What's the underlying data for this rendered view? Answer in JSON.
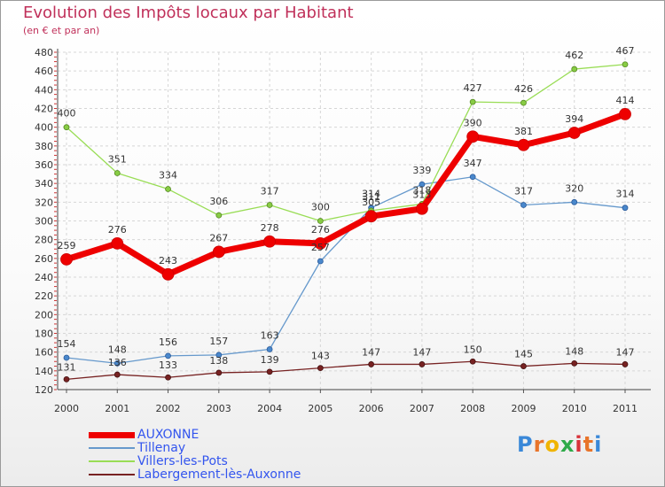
{
  "header": {
    "title": "Evolution des Impôts locaux par Habitant",
    "subtitle": "(en € et par an)"
  },
  "chart_data": {
    "type": "line",
    "title": "Evolution des Impôts locaux par Habitant",
    "subtitle": "(en € et par an)",
    "xlabel": "",
    "ylabel": "",
    "x": [
      "2000",
      "2001",
      "2002",
      "2003",
      "2004",
      "2005",
      "2006",
      "2007",
      "2008",
      "2009",
      "2010",
      "2011"
    ],
    "ylim": [
      120,
      480
    ],
    "ytick_step": 20,
    "yticks": [
      "120",
      "140",
      "160",
      "180",
      "200",
      "220",
      "240",
      "260",
      "280",
      "300",
      "320",
      "340",
      "360",
      "380",
      "400",
      "420",
      "440",
      "460",
      "480"
    ],
    "grid": true,
    "legend_position": "bottom-left",
    "series": [
      {
        "name": "AUXONNE",
        "color": "#ee0000",
        "values": [
          259,
          276,
          243,
          267,
          278,
          276,
          305,
          313,
          390,
          381,
          394,
          414
        ]
      },
      {
        "name": "Tillenay",
        "color": "#6699cc",
        "values": [
          154,
          148,
          156,
          157,
          163,
          257,
          314,
          339,
          347,
          317,
          320,
          314
        ]
      },
      {
        "name": "Villers-les-Pots",
        "color": "#99dd55",
        "values": [
          400,
          351,
          334,
          306,
          317,
          300,
          311,
          318,
          427,
          426,
          462,
          467
        ]
      },
      {
        "name": "Labergement-lès-Auxonne",
        "color": "#772222",
        "values": [
          131,
          136,
          133,
          138,
          139,
          143,
          147,
          147,
          150,
          145,
          148,
          147
        ]
      }
    ]
  },
  "logo": {
    "letters": [
      "P",
      "r",
      "o",
      "x",
      "i",
      "t",
      "i"
    ],
    "colors": [
      "#3a88d8",
      "#e8742a",
      "#f0b400",
      "#2eaa48",
      "#d8333a",
      "#e8742a",
      "#3a88d8"
    ]
  }
}
